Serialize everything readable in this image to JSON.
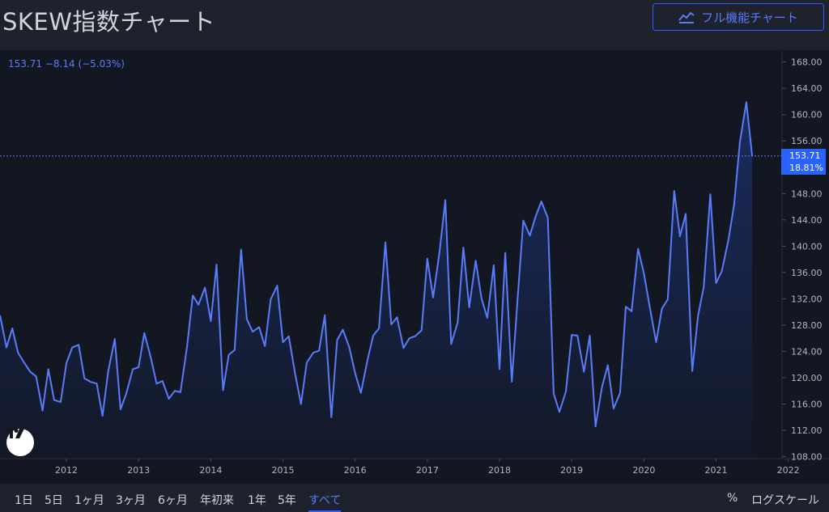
{
  "header": {
    "title": "SKEW指数チャート",
    "full_chart_label": "フル機能チャート",
    "full_chart_icon": "chart-line-icon"
  },
  "readout": {
    "price": "153.71",
    "change": "−8.14",
    "change_pct": "(−5.03%)"
  },
  "price_tag": {
    "price": "153.71",
    "pct": "18.81%"
  },
  "colors": {
    "line": "#5b7cfa",
    "accent": "#2962ff",
    "background": "#131722"
  },
  "chart_data": {
    "type": "area",
    "y_ticks": [
      "108.00",
      "112.00",
      "116.00",
      "120.00",
      "124.00",
      "128.00",
      "132.00",
      "136.00",
      "140.00",
      "144.00",
      "148.00",
      "152.00",
      "156.00",
      "160.00",
      "164.00",
      "168.00"
    ],
    "x_ticks": [
      "2012",
      "2013",
      "2014",
      "2015",
      "2016",
      "2017",
      "2018",
      "2019",
      "2020",
      "2021",
      "2022"
    ],
    "ylim": [
      107.7,
      169.8
    ],
    "xlim": [
      2011.08,
      2022.43
    ],
    "last_value": 153.71,
    "grid": false,
    "series": [
      {
        "x": [
          2011.08,
          2011.17,
          2011.25,
          2011.33,
          2011.42,
          2011.5,
          2011.58,
          2011.67,
          2011.75,
          2011.83,
          2011.92,
          2012.0,
          2012.08,
          2012.17,
          2012.25,
          2012.33,
          2012.42,
          2012.5,
          2012.58,
          2012.67,
          2012.75,
          2012.83,
          2012.92,
          2013.0,
          2013.08,
          2013.17,
          2013.25,
          2013.33,
          2013.42,
          2013.5,
          2013.58,
          2013.67,
          2013.75,
          2013.83,
          2013.92,
          2014.0,
          2014.08,
          2014.17,
          2014.25,
          2014.33,
          2014.42,
          2014.5,
          2014.58,
          2014.67,
          2014.75,
          2014.83,
          2014.92,
          2015.0,
          2015.08,
          2015.17,
          2015.25,
          2015.33,
          2015.42,
          2015.5,
          2015.58,
          2015.67,
          2015.75,
          2015.83,
          2015.92,
          2016.0,
          2016.08,
          2016.17,
          2016.25,
          2016.33,
          2016.42,
          2016.5,
          2016.58,
          2016.67,
          2016.75,
          2016.83,
          2016.92,
          2017.0,
          2017.08,
          2017.17,
          2017.25,
          2017.33,
          2017.42,
          2017.5,
          2017.58,
          2017.67,
          2017.75,
          2017.83,
          2017.92,
          2018.0,
          2018.08,
          2018.17,
          2018.25,
          2018.33,
          2018.42,
          2018.5,
          2018.58,
          2018.67,
          2018.75,
          2018.83,
          2018.92,
          2019.0,
          2019.08,
          2019.17,
          2019.25,
          2019.33,
          2019.42,
          2019.5,
          2019.58,
          2019.67,
          2019.75,
          2019.83,
          2019.92,
          2020.0,
          2020.08,
          2020.17,
          2020.25,
          2020.33,
          2020.42,
          2020.5,
          2020.58,
          2020.67,
          2020.75,
          2020.83,
          2020.92,
          2021.0,
          2021.08,
          2021.17,
          2021.25,
          2021.33,
          2021.42,
          2021.5
        ],
        "values": [
          129.5,
          124.6,
          127.5,
          123.8,
          122.2,
          120.9,
          120.2,
          115.0,
          121.3,
          116.6,
          116.3,
          122.2,
          124.6,
          125.0,
          119.9,
          119.4,
          119.1,
          114.2,
          121.0,
          125.9,
          115.2,
          117.6,
          121.3,
          121.6,
          126.8,
          123.0,
          119.1,
          119.5,
          116.8,
          118.0,
          117.8,
          124.6,
          132.5,
          131.1,
          133.7,
          128.6,
          137.2,
          118.1,
          123.5,
          124.2,
          139.5,
          128.9,
          127.0,
          127.7,
          124.8,
          131.9,
          134.0,
          125.4,
          126.3,
          120.5,
          116.0,
          122.3,
          123.8,
          124.1,
          129.5,
          114.0,
          125.7,
          127.3,
          124.6,
          120.7,
          117.7,
          122.6,
          126.4,
          127.5,
          140.6,
          128.1,
          129.2,
          124.5,
          126.0,
          126.3,
          127.2,
          138.1,
          132.2,
          139.2,
          147.0,
          125.1,
          128.4,
          139.8,
          130.7,
          137.8,
          132.1,
          129.1,
          137.1,
          121.3,
          139.0,
          119.4,
          131.9,
          143.9,
          141.6,
          144.5,
          146.8,
          144.3,
          117.6,
          114.8,
          117.9,
          126.5,
          126.4,
          120.9,
          126.4,
          112.6,
          118.6,
          121.9,
          115.3,
          117.7,
          130.8,
          130.1,
          139.6,
          135.9,
          130.8,
          125.4,
          130.5,
          131.9,
          148.4,
          141.5,
          144.9,
          121.0,
          129.4,
          133.8,
          147.9,
          134.4,
          136.2,
          140.9,
          146.3,
          155.8,
          161.9,
          153.71
        ]
      }
    ]
  },
  "footer": {
    "ranges": [
      "1日",
      "5日",
      "1ヶ月",
      "3ヶ月",
      "6ヶ月",
      "年初来",
      "1年",
      "5年",
      "すべて"
    ],
    "active_range": "すべて",
    "percent_label": "%",
    "log_label": "ログスケール"
  }
}
